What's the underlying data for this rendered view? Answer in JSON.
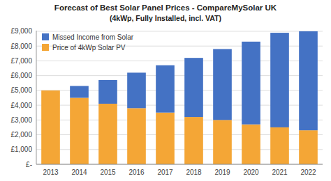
{
  "chart_data": {
    "type": "bar",
    "stacked": true,
    "title": "Forecast of Best Solar Panel Prices - CompareMySolar UK",
    "subtitle": "(4kWp, Fully Installed, incl. VAT)",
    "categories": [
      "2013",
      "2014",
      "2015",
      "2016",
      "2017",
      "2018",
      "2019",
      "2020",
      "2021",
      "2022"
    ],
    "series": [
      {
        "name": "Price of 4kWp Solar PV",
        "color": "#F4A636",
        "values": [
          5000,
          4500,
          4100,
          3800,
          3500,
          3200,
          3000,
          2700,
          2500,
          2300
        ]
      },
      {
        "name": "Missed Income from Solar",
        "color": "#4472C4",
        "values": [
          0,
          800,
          1600,
          2400,
          3200,
          4000,
          4800,
          5600,
          6400,
          6700
        ]
      }
    ],
    "ylim": [
      0,
      9045
    ],
    "yticks": [
      {
        "value": 0,
        "label": "£-"
      },
      {
        "value": 1000,
        "label": "£1,000"
      },
      {
        "value": 2000,
        "label": "£2,000"
      },
      {
        "value": 3000,
        "label": "£3,000"
      },
      {
        "value": 4000,
        "label": "£4,000"
      },
      {
        "value": 5000,
        "label": "£5,000"
      },
      {
        "value": 6000,
        "label": "£6,000"
      },
      {
        "value": 7000,
        "label": "£7,000"
      },
      {
        "value": 8000,
        "label": "£8,000"
      },
      {
        "value": 9000,
        "label": "£9,000"
      }
    ],
    "grid": true,
    "legend": "upper left"
  }
}
